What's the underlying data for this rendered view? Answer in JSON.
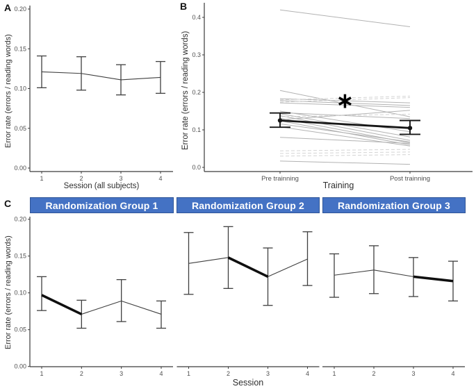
{
  "figure": {
    "background": "#ffffff",
    "colors": {
      "axis": "#3a3a3a",
      "tick_text": "#4f4f4f",
      "series_line": "#3f3f3f",
      "bold_line": "#0f0f0f",
      "subject_solid": "#b2b2b2",
      "subject_dashed": "#d4d4d4",
      "mean_line": "#161616",
      "significance": "#000000",
      "header_bg": "#4472c4",
      "header_border": "#2f5597",
      "header_text": "#ffffff"
    }
  },
  "chart_data": [
    {
      "id": "panel-a",
      "panel_label": "A",
      "type": "line",
      "title": "",
      "xlabel": "Session (all subjects)",
      "ylabel": "Error rate (errors / reading words)",
      "categories": [
        "1",
        "2",
        "3",
        "4"
      ],
      "values": [
        0.121,
        0.119,
        0.111,
        0.114
      ],
      "ci_lower": [
        0.101,
        0.098,
        0.092,
        0.094
      ],
      "ci_upper": [
        0.141,
        0.14,
        0.13,
        0.134
      ],
      "ylim": [
        0.0,
        0.2
      ],
      "yticks": [
        0,
        0.05,
        0.1,
        0.15,
        0.2
      ],
      "ytick_labels": [
        "0.00",
        "0.05",
        "0.10",
        "0.15",
        "0.20"
      ],
      "grid": false,
      "legend": "none"
    },
    {
      "id": "panel-b",
      "panel_label": "B",
      "type": "line",
      "title": "",
      "xlabel": "Training",
      "ylabel": "Error rate (errors / reading words)",
      "categories": [
        "Pre trainning",
        "Post trainning"
      ],
      "ylim": [
        0.0,
        0.42
      ],
      "yticks": [
        0,
        0.1,
        0.2,
        0.3,
        0.4
      ],
      "ytick_labels": [
        "0.0",
        "0.1",
        "0.2",
        "0.3",
        "0.4"
      ],
      "significance_marker": "∗",
      "mean": {
        "values": [
          0.125,
          0.105
        ],
        "ci_lower": [
          0.107,
          0.088
        ],
        "ci_upper": [
          0.145,
          0.125
        ]
      },
      "subjects": [
        {
          "values": [
            0.42,
            0.375
          ],
          "style": "solid"
        },
        {
          "values": [
            0.205,
            0.135
          ],
          "style": "solid"
        },
        {
          "values": [
            0.183,
            0.172
          ],
          "style": "solid"
        },
        {
          "values": [
            0.178,
            0.165
          ],
          "style": "solid"
        },
        {
          "values": [
            0.172,
            0.16
          ],
          "style": "solid"
        },
        {
          "values": [
            0.18,
            0.19
          ],
          "style": "dashed"
        },
        {
          "values": [
            0.174,
            0.186
          ],
          "style": "dashed"
        },
        {
          "values": [
            0.15,
            0.095
          ],
          "style": "solid"
        },
        {
          "values": [
            0.146,
            0.13
          ],
          "style": "solid"
        },
        {
          "values": [
            0.143,
            0.081
          ],
          "style": "solid"
        },
        {
          "values": [
            0.138,
            0.072
          ],
          "style": "solid"
        },
        {
          "values": [
            0.131,
            0.065
          ],
          "style": "solid"
        },
        {
          "values": [
            0.124,
            0.06
          ],
          "style": "solid"
        },
        {
          "values": [
            0.116,
            0.068
          ],
          "style": "solid"
        },
        {
          "values": [
            0.108,
            0.057
          ],
          "style": "solid"
        },
        {
          "values": [
            0.127,
            0.152
          ],
          "style": "solid"
        },
        {
          "values": [
            0.135,
            0.142
          ],
          "style": "dashed"
        },
        {
          "values": [
            0.08,
            0.064
          ],
          "style": "solid"
        },
        {
          "values": [
            0.044,
            0.048
          ],
          "style": "dashed"
        },
        {
          "values": [
            0.037,
            0.041
          ],
          "style": "dashed"
        },
        {
          "values": [
            0.03,
            0.034
          ],
          "style": "dashed"
        },
        {
          "values": [
            0.017,
            0.008
          ],
          "style": "solid"
        }
      ],
      "grid": false,
      "legend": "none"
    },
    {
      "id": "panel-c",
      "panel_label": "C",
      "type": "line",
      "title": "",
      "xlabel": "Session",
      "ylabel": "Error rate (errors / reading words)",
      "categories": [
        "1",
        "2",
        "3",
        "4"
      ],
      "ylim": [
        0.0,
        0.2
      ],
      "yticks": [
        0,
        0.05,
        0.1,
        0.15,
        0.2
      ],
      "ytick_labels": [
        "0.00",
        "0.05",
        "0.10",
        "0.15",
        "0.20"
      ],
      "facets": [
        {
          "title": "Randomization Group 1",
          "values": [
            0.097,
            0.071,
            0.089,
            0.071
          ],
          "ci_lower": [
            0.076,
            0.052,
            0.061,
            0.052
          ],
          "ci_upper": [
            0.122,
            0.09,
            0.118,
            0.089
          ],
          "bold_segment": [
            0,
            1
          ]
        },
        {
          "title": "Randomization Group 2",
          "values": [
            0.14,
            0.148,
            0.122,
            0.146
          ],
          "ci_lower": [
            0.098,
            0.106,
            0.083,
            0.11
          ],
          "ci_upper": [
            0.182,
            0.19,
            0.161,
            0.183
          ],
          "bold_segment": [
            1,
            2
          ]
        },
        {
          "title": "Randomization Group 3",
          "values": [
            0.124,
            0.131,
            0.122,
            0.116
          ],
          "ci_lower": [
            0.094,
            0.099,
            0.095,
            0.089
          ],
          "ci_upper": [
            0.153,
            0.164,
            0.148,
            0.143
          ],
          "bold_segment": [
            2,
            3
          ]
        }
      ],
      "grid": false,
      "legend": "none"
    }
  ]
}
